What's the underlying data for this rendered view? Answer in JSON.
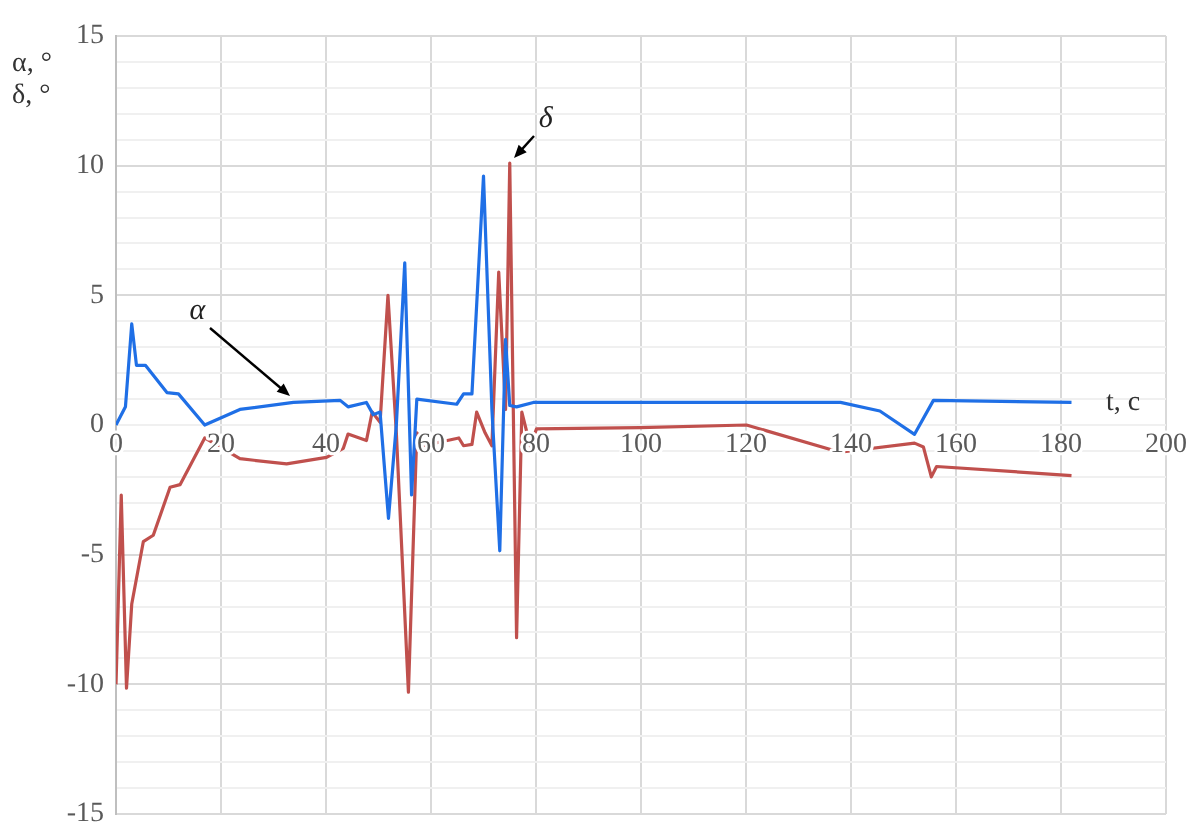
{
  "chart_data": {
    "type": "line",
    "xlabel": "t, c",
    "ylabel": "α, °\nδ, °",
    "xlim": [
      0,
      200
    ],
    "xticks": [
      0,
      20,
      40,
      60,
      80,
      100,
      120,
      140,
      160,
      180,
      200
    ],
    "ylim": [
      -15,
      15
    ],
    "yticks": [
      -15,
      {
        "value": -14,
        "label": null
      },
      {
        "value": -13,
        "label": null
      },
      {
        "value": -12,
        "label": null
      },
      {
        "value": -11,
        "label": null
      },
      -10,
      {
        "value": -9,
        "label": null
      },
      {
        "value": -8,
        "label": null
      },
      {
        "value": -7,
        "label": null
      },
      {
        "value": -6,
        "label": null
      },
      -5,
      {
        "value": -4,
        "label": null
      },
      {
        "value": -3,
        "label": null
      },
      {
        "value": -2,
        "label": null
      },
      {
        "value": -1,
        "label": null
      },
      0,
      {
        "value": 1,
        "label": null
      },
      {
        "value": 2,
        "label": null
      },
      {
        "value": 3,
        "label": null
      },
      {
        "value": 4,
        "label": null
      },
      5,
      {
        "value": 6,
        "label": null
      },
      {
        "value": 7,
        "label": null
      },
      {
        "value": 8,
        "label": null
      },
      {
        "value": 9,
        "label": null
      },
      10,
      {
        "value": 11,
        "label": null
      },
      {
        "value": 12,
        "label": null
      },
      {
        "value": 13,
        "label": null
      },
      {
        "value": 14,
        "label": null
      },
      15
    ],
    "grid": true,
    "legend": false,
    "marker": "none",
    "line_style": "solid",
    "annotations": [
      {
        "text": "α",
        "x": 33.8,
        "y": 0.87
      },
      {
        "text": "δ",
        "x": 75,
        "y": 10.1
      }
    ],
    "series": [
      {
        "color": "#1f6fe6",
        "x": [
          0,
          1.8,
          3,
          3.9,
          5.6,
          9.7,
          11.9,
          16.9,
          23.6,
          33.8,
          42.7,
          44.2,
          47.7,
          49,
          50.3,
          51.9,
          53.4,
          55,
          56.3,
          57.3,
          64.9,
          66.2,
          67.8,
          70,
          71.6,
          73.1,
          74.2,
          75,
          76.3,
          79.5,
          100,
          120,
          138,
          145.5,
          152.1,
          155.7,
          182
        ],
        "values": [
          0,
          0.7,
          3.9,
          2.3,
          2.3,
          1.25,
          1.2,
          0,
          0.6,
          0.87,
          0.95,
          0.7,
          0.87,
          0.4,
          0.5,
          -3.6,
          0,
          6.25,
          -2.7,
          1,
          0.8,
          1.2,
          1.2,
          9.6,
          0.6,
          -4.85,
          3.3,
          0.75,
          0.7,
          0.87,
          0.87,
          0.87,
          0.87,
          0.54,
          -0.36,
          0.95,
          0.87
        ]
      },
      {
        "color": "#c0504d",
        "x": [
          0,
          1,
          2,
          3,
          5.2,
          7.1,
          10.3,
          12.2,
          16.9,
          23.6,
          32.5,
          40.1,
          43.3,
          44.2,
          47.7,
          48.8,
          50.3,
          51.8,
          53.4,
          55.7,
          57.3,
          58.5,
          65.3,
          66.2,
          67.8,
          68.7,
          70.3,
          71.6,
          72.9,
          74.2,
          75,
          76.3,
          77.3,
          78.9,
          80.1,
          99.8,
          120.1,
          137.9,
          152.1,
          153.8,
          155.3,
          156.3,
          182
        ],
        "values": [
          -10,
          -2.7,
          -10.15,
          -6.9,
          -4.5,
          -4.25,
          -2.4,
          -2.3,
          -0.5,
          -1.3,
          -1.5,
          -1.25,
          -0.9,
          -0.35,
          -0.6,
          0.5,
          0.1,
          5,
          -0.3,
          -10.3,
          -0.3,
          -0.8,
          -0.5,
          -0.8,
          -0.75,
          0.5,
          -0.3,
          -0.8,
          5.9,
          0.6,
          10.1,
          -8.2,
          0.5,
          -0.8,
          -0.15,
          -0.1,
          0,
          -1.05,
          -0.7,
          -0.85,
          -2,
          -1.6,
          -1.95
        ]
      }
    ]
  }
}
